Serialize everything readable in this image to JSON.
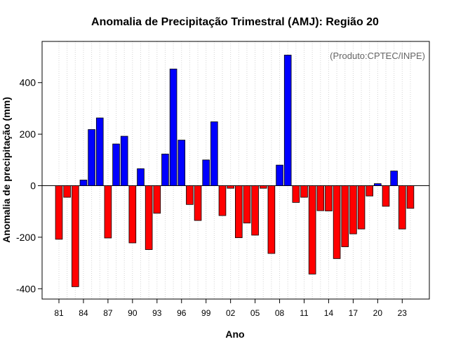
{
  "chart_data": {
    "type": "bar",
    "title": "Anomalia de Precipitação Trimestral (AMJ): Região 20",
    "xlabel": "Ano",
    "ylabel": "Anomalia de precipitação (mm)",
    "credit": "(Produto:CPTEC/INPE)",
    "ylim": [
      -440,
      560
    ],
    "yticks": [
      -400,
      -200,
      0,
      200,
      400
    ],
    "ytick_labels": [
      "-400",
      "-200",
      "0",
      "200",
      "400"
    ],
    "xtick_labels": [
      "81",
      "84",
      "87",
      "90",
      "93",
      "96",
      "99",
      "02",
      "05",
      "08",
      "11",
      "14",
      "17",
      "20",
      "23"
    ],
    "xtick_every": 3,
    "positive_color": "#0000ff",
    "negative_color": "#ff0000",
    "grid": "vertical-dotted",
    "years": [
      1981,
      1982,
      1983,
      1984,
      1985,
      1986,
      1987,
      1988,
      1989,
      1990,
      1991,
      1992,
      1993,
      1994,
      1995,
      1996,
      1997,
      1998,
      1999,
      2000,
      2001,
      2002,
      2003,
      2004,
      2005,
      2006,
      2007,
      2008,
      2009,
      2010,
      2011,
      2012,
      2013,
      2014,
      2015,
      2016,
      2017,
      2018,
      2019,
      2020,
      2021,
      2022,
      2023,
      2024
    ],
    "values": [
      -208,
      -45,
      -392,
      22,
      218,
      263,
      -203,
      162,
      192,
      -222,
      66,
      -248,
      -107,
      123,
      453,
      177,
      -73,
      -135,
      100,
      248,
      -116,
      -10,
      -202,
      -145,
      -192,
      -10,
      -263,
      80,
      507,
      -65,
      -45,
      -343,
      -97,
      -98,
      -283,
      -237,
      -187,
      -168,
      -40,
      8,
      -80,
      57,
      -168,
      -88
    ]
  }
}
